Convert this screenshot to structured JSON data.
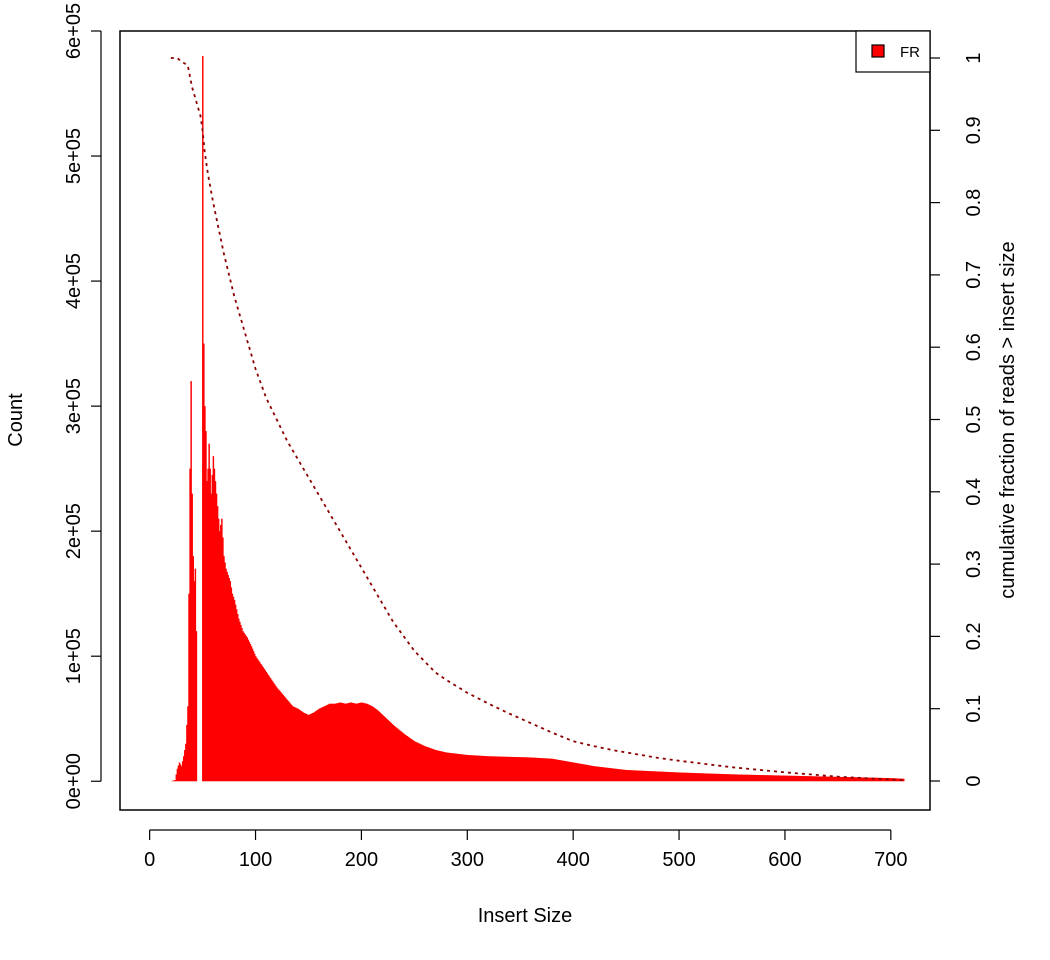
{
  "chart_data": {
    "type": "bar",
    "xlabel": "Insert Size",
    "ylabel": "Count",
    "ylabel_right": "cumulative fraction of reads > insert size",
    "xlim": [
      -28,
      737
    ],
    "ylim": [
      -23000,
      600000
    ],
    "ylim_right": [
      0,
      1
    ],
    "x_ticks": [
      0,
      100,
      200,
      300,
      400,
      500,
      600,
      700
    ],
    "x_tick_labels": [
      "0",
      "100",
      "200",
      "300",
      "400",
      "500",
      "600",
      "700"
    ],
    "y_ticks": [
      0,
      100000,
      200000,
      300000,
      400000,
      500000,
      600000
    ],
    "y_tick_labels": [
      "0e+00",
      "1e+05",
      "2e+05",
      "3e+05",
      "4e+05",
      "5e+05",
      "6e+05"
    ],
    "y2_ticks": [
      0,
      0.1,
      0.2,
      0.3,
      0.4,
      0.5,
      0.6,
      0.7,
      0.8,
      0.9,
      1
    ],
    "y2_tick_labels": [
      "0",
      "0.1",
      "0.2",
      "0.3",
      "0.4",
      "0.5",
      "0.6",
      "0.7",
      "0.8",
      "0.9",
      "1"
    ],
    "legend": {
      "position": "top-right",
      "entries": [
        {
          "label": "FR",
          "color": "#ff0000"
        }
      ]
    },
    "bar_color": "#ff0000",
    "cumulative_color": "#8b0000",
    "histogram": {
      "name": "FR",
      "x": [
        20,
        24,
        26,
        28,
        30,
        32,
        34,
        36,
        37,
        38,
        39,
        40,
        41,
        42,
        43,
        44,
        45,
        46,
        47,
        48,
        49,
        50,
        51,
        52,
        53,
        54,
        55,
        56,
        58,
        60,
        62,
        64,
        66,
        68,
        70,
        72,
        74,
        76,
        78,
        80,
        84,
        88,
        92,
        96,
        100,
        104,
        108,
        112,
        116,
        120,
        125,
        130,
        135,
        140,
        145,
        150,
        155,
        160,
        165,
        170,
        175,
        180,
        185,
        190,
        195,
        200,
        205,
        210,
        215,
        220,
        230,
        240,
        250,
        260,
        270,
        280,
        300,
        320,
        340,
        360,
        380,
        400,
        420,
        450,
        500,
        550,
        600,
        650,
        700,
        712
      ],
      "y": [
        0,
        1000,
        10000,
        15000,
        12000,
        20000,
        30000,
        60000,
        150000,
        250000,
        320000,
        230000,
        180000,
        160000,
        170000,
        120000,
        0,
        0,
        0,
        0,
        0,
        580000,
        350000,
        300000,
        280000,
        240000,
        250000,
        270000,
        230000,
        260000,
        240000,
        220000,
        200000,
        210000,
        180000,
        170000,
        165000,
        160000,
        150000,
        145000,
        130000,
        120000,
        115000,
        108000,
        100000,
        95000,
        90000,
        85000,
        80000,
        75000,
        70000,
        65000,
        60000,
        58000,
        55000,
        53000,
        55000,
        58000,
        60000,
        62000,
        62000,
        63000,
        62000,
        63000,
        62000,
        63000,
        62000,
        60000,
        57000,
        53000,
        45000,
        38000,
        32000,
        28000,
        25000,
        23000,
        21000,
        20000,
        19500,
        19000,
        18000,
        15000,
        12000,
        9000,
        7000,
        5500,
        4500,
        3500,
        2500,
        2000
      ]
    },
    "cumulative": {
      "name": "cumulative fraction of reads > insert size",
      "x": [
        20,
        26,
        30,
        36,
        40,
        44,
        48,
        50,
        52,
        55,
        60,
        70,
        80,
        90,
        100,
        110,
        120,
        130,
        140,
        150,
        160,
        170,
        180,
        190,
        200,
        210,
        220,
        230,
        240,
        250,
        260,
        270,
        280,
        300,
        320,
        340,
        360,
        380,
        400,
        420,
        440,
        460,
        480,
        500,
        550,
        600,
        650,
        700,
        712
      ],
      "y": [
        1.0,
        1.0,
        0.995,
        0.99,
        0.96,
        0.94,
        0.92,
        0.9,
        0.87,
        0.84,
        0.8,
        0.73,
        0.67,
        0.62,
        0.57,
        0.53,
        0.5,
        0.47,
        0.445,
        0.42,
        0.395,
        0.37,
        0.345,
        0.32,
        0.295,
        0.27,
        0.245,
        0.22,
        0.2,
        0.18,
        0.165,
        0.15,
        0.14,
        0.122,
        0.107,
        0.093,
        0.08,
        0.067,
        0.055,
        0.048,
        0.042,
        0.037,
        0.032,
        0.028,
        0.019,
        0.012,
        0.006,
        0.002,
        0.001
      ]
    }
  }
}
